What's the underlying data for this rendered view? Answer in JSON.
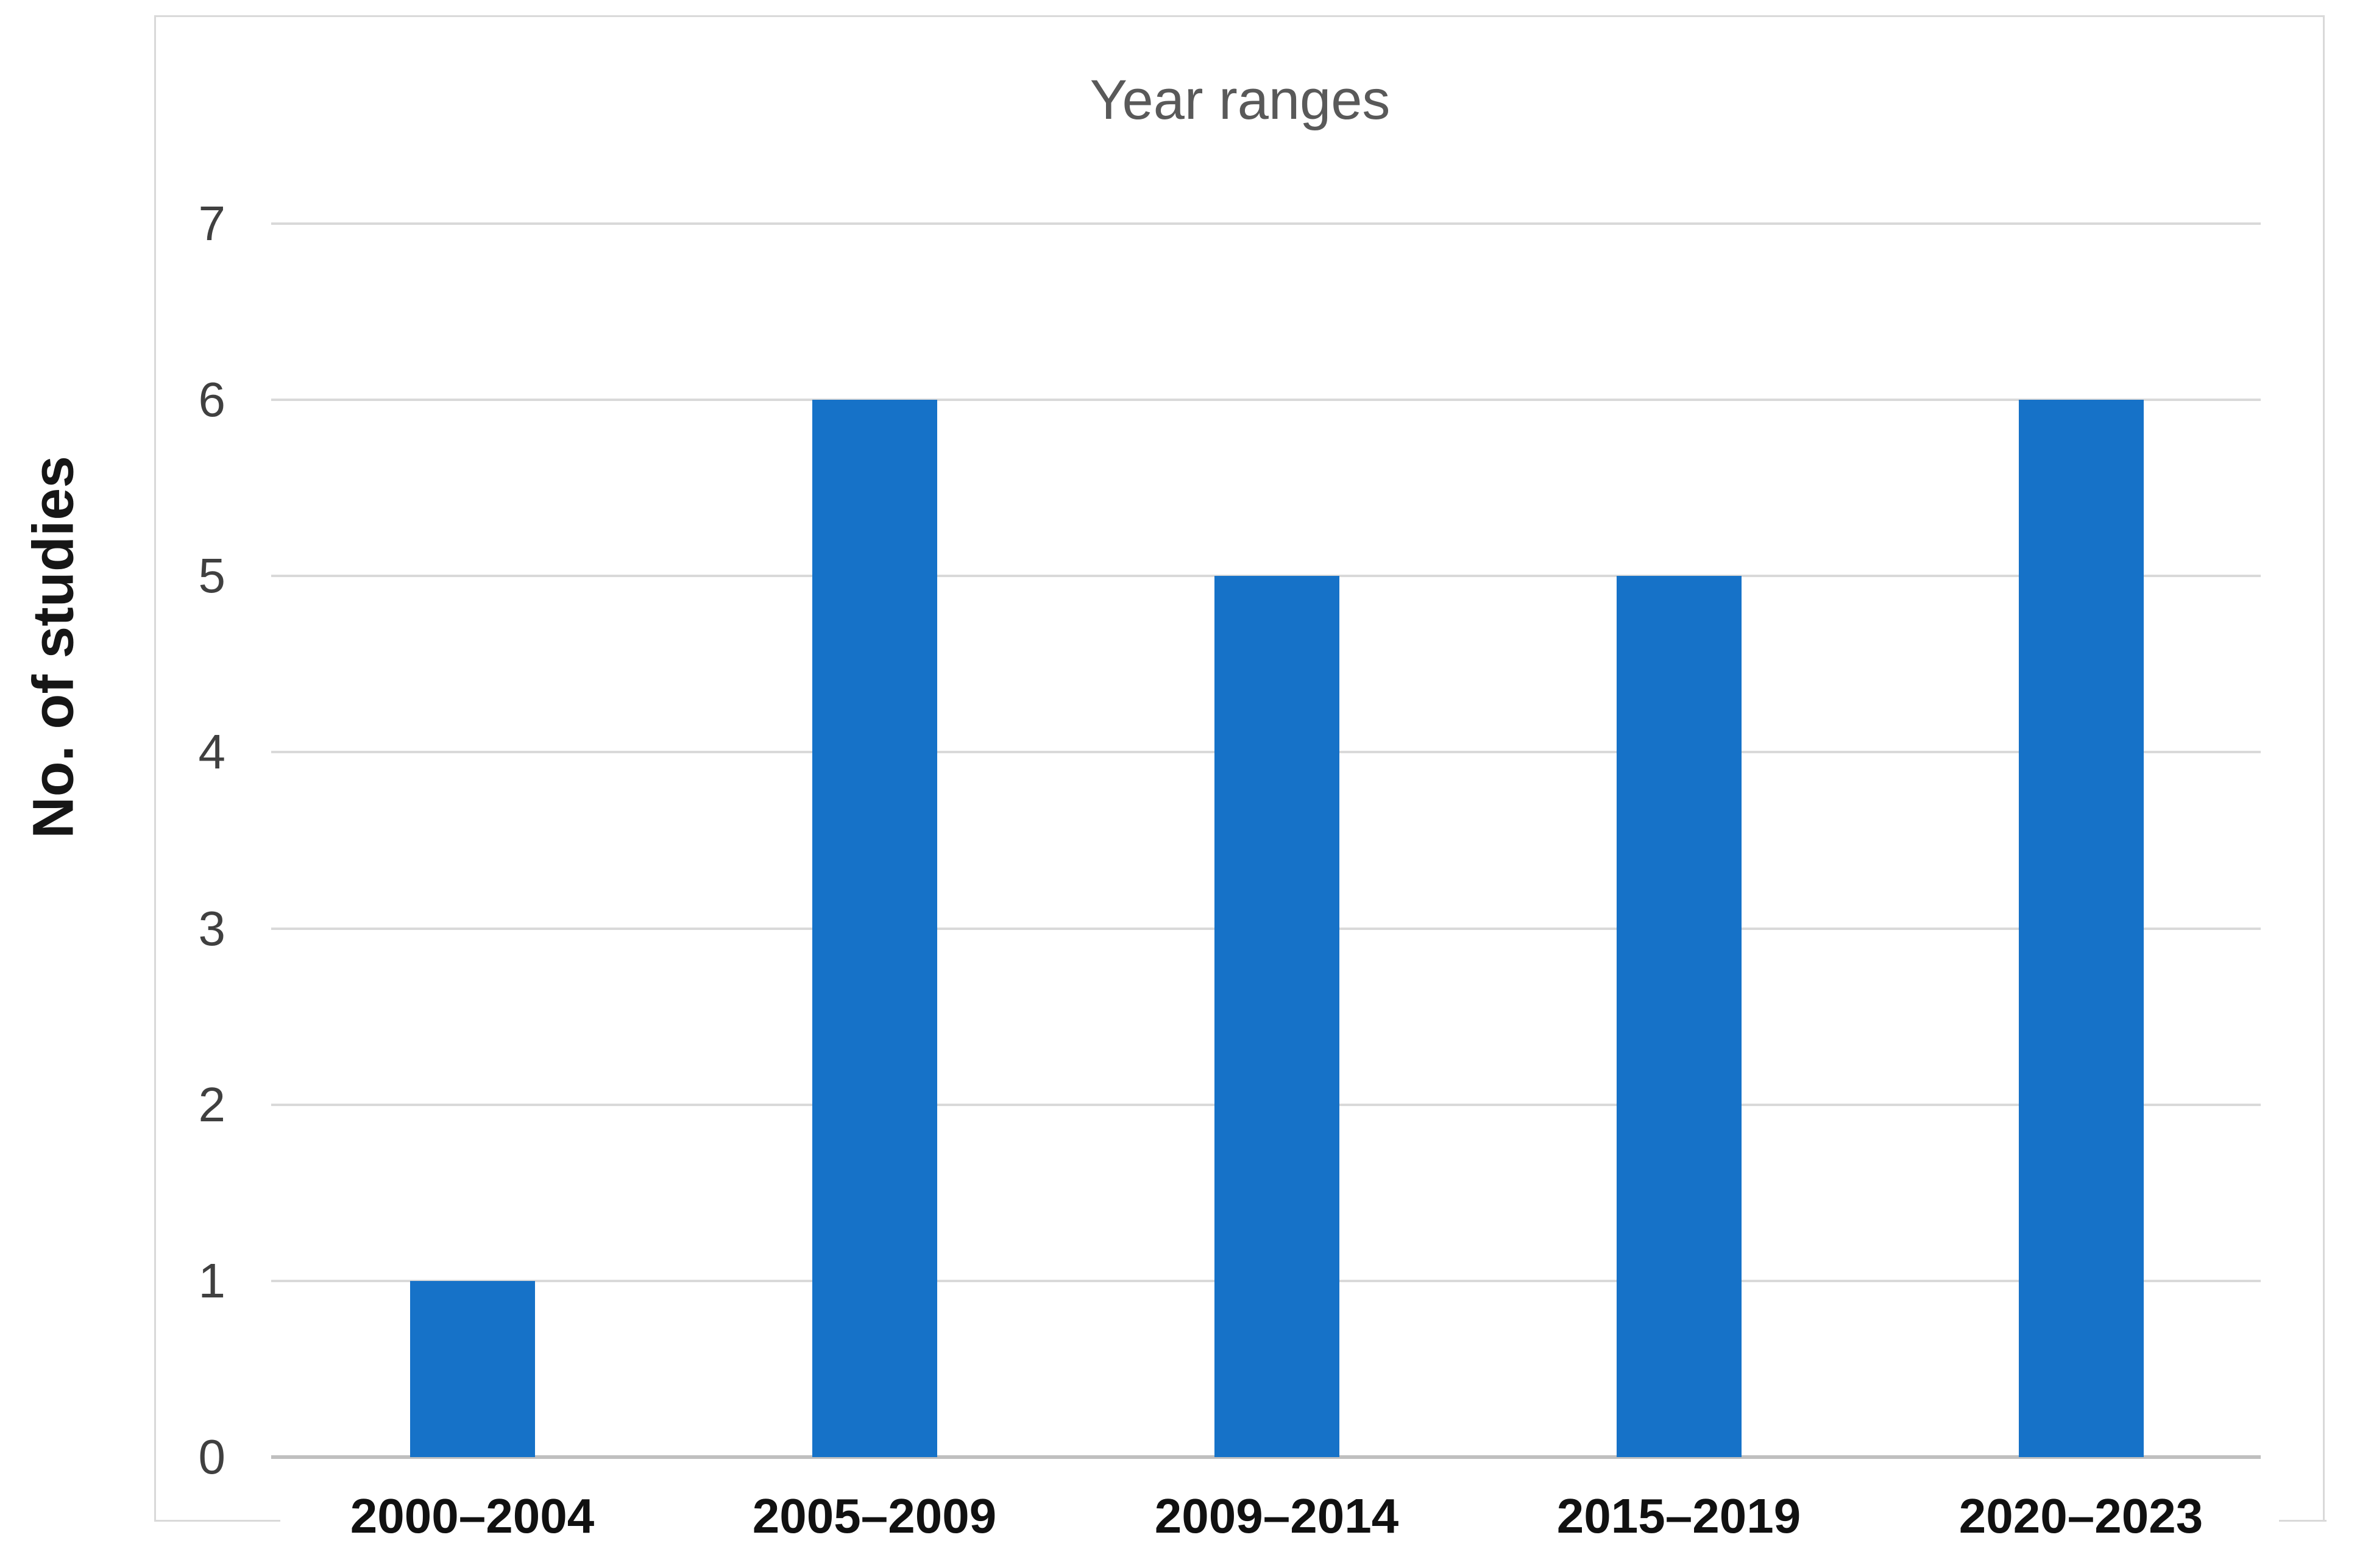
{
  "figure": {
    "title": "Year ranges",
    "y_axis_title": "No. of studies"
  },
  "chart_data": {
    "type": "bar",
    "title": "Year ranges",
    "xlabel": "",
    "ylabel": "No. of studies",
    "categories": [
      "2000–2004",
      "2005–2009",
      "2009–2014",
      "2015–2019",
      "2020–2023"
    ],
    "values": [
      1,
      6,
      5,
      5,
      6
    ],
    "ylim": [
      0,
      7
    ],
    "yticks": [
      0,
      1,
      2,
      3,
      4,
      5,
      6,
      7
    ],
    "grid": true,
    "legend": false,
    "colors": {
      "bar": "#1672C8",
      "gridline": "#D9D9D9",
      "axis_line": "#BFBFBF",
      "frame_border": "#D9D9D9",
      "title_text": "#595959",
      "y_tick_text": "#404040",
      "x_tick_text": "#111111",
      "y_axis_title_text": "#161616"
    }
  }
}
